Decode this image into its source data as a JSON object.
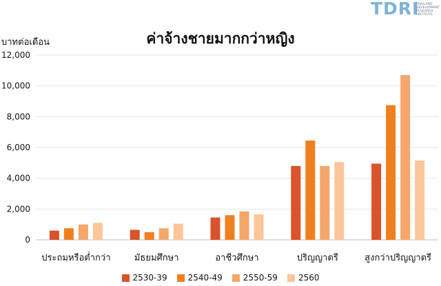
{
  "logo": {
    "mark": "TDRI",
    "lines": [
      "THAILAND",
      "DEVELOPMENT",
      "RESEARCH",
      "INSTITUTE"
    ]
  },
  "chart_data": {
    "type": "bar",
    "title": "ค่าจ้างชายมากกว่าหญิง",
    "ylabel": "บาทต่อเดือน",
    "xlabel": "",
    "ylim": [
      0,
      12000
    ],
    "yticks": [
      "0",
      "2,000",
      "4,000",
      "6,000",
      "8,000",
      "10,000",
      "12,000"
    ],
    "ytick_values": [
      0,
      2000,
      4000,
      6000,
      8000,
      10000,
      12000
    ],
    "grid": true,
    "legend_position": "bottom",
    "categories": [
      "ประถมหรือต่ำกว่า",
      "มัธยมศึกษา",
      "อาชีวศึกษา",
      "ปริญญาตรี",
      "สูงกว่าปริญญาตรี"
    ],
    "series": [
      {
        "name": "2530-39",
        "color": "#d9532b",
        "values": [
          600,
          650,
          1450,
          4800,
          4950
        ]
      },
      {
        "name": "2540-49",
        "color": "#f07f20",
        "values": [
          750,
          500,
          1600,
          6450,
          8750
        ]
      },
      {
        "name": "2550-59",
        "color": "#f4a66b",
        "values": [
          1000,
          750,
          1850,
          4800,
          10700
        ]
      },
      {
        "name": "2560",
        "color": "#fac69a",
        "values": [
          1100,
          1050,
          1650,
          5050,
          5150
        ]
      }
    ]
  }
}
